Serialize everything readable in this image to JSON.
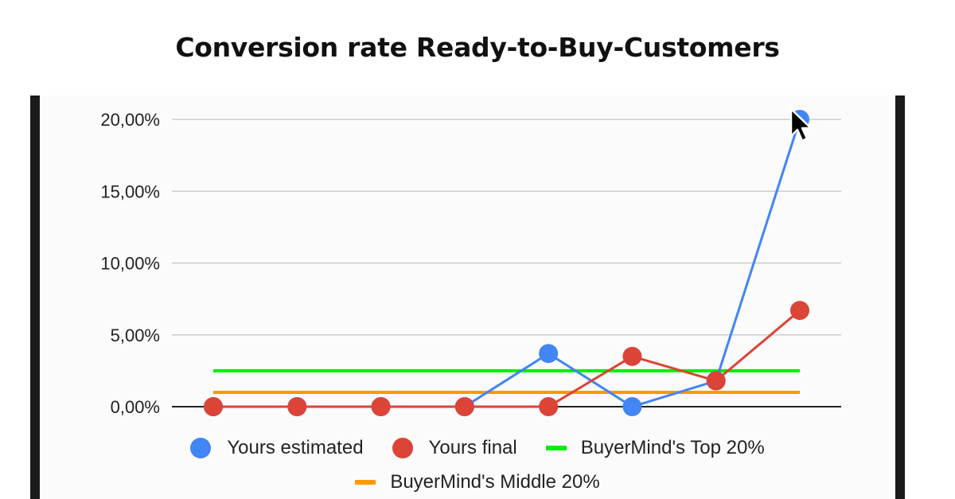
{
  "title": "Conversion rate Ready-to-Buy-Customers",
  "chart_data": {
    "type": "line",
    "x": [
      1,
      2,
      3,
      4,
      5,
      6,
      7,
      8
    ],
    "ylim": [
      0,
      20
    ],
    "yticks": [
      "0,00%",
      "5,00%",
      "10,00%",
      "15,00%",
      "20,00%"
    ],
    "ytick_values": [
      0,
      5,
      10,
      15,
      20
    ],
    "grid": true,
    "legend_position": "bottom",
    "series": [
      {
        "name": "Yours estimated",
        "color": "#4285f4",
        "marker": true,
        "values": [
          0,
          0,
          0,
          0,
          3.7,
          0,
          1.8,
          20
        ]
      },
      {
        "name": "Yours final",
        "color": "#db4437",
        "marker": true,
        "values": [
          0,
          0,
          0,
          0,
          0,
          3.5,
          1.8,
          6.7
        ]
      },
      {
        "name": "BuyerMind's Top 20%",
        "color": "#00ee00",
        "marker": false,
        "values": [
          2.5,
          2.5,
          2.5,
          2.5,
          2.5,
          2.5,
          2.5,
          2.5
        ]
      },
      {
        "name": "BuyerMind's Middle 20%",
        "color": "#ff9900",
        "marker": false,
        "values": [
          1.0,
          1.0,
          1.0,
          1.0,
          1.0,
          1.0,
          1.0,
          1.0
        ]
      }
    ]
  }
}
